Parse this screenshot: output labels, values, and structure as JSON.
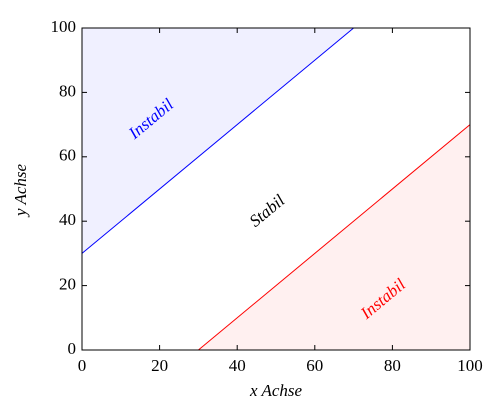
{
  "chart_data": {
    "type": "line",
    "xlabel": "x Achse",
    "ylabel": "y Achse",
    "series": [
      {
        "color": "#0000ff",
        "fill": "above",
        "x": [
          0,
          70
        ],
        "values": [
          30,
          100
        ]
      },
      {
        "color": "#ff0000",
        "fill": "below",
        "x": [
          30,
          100
        ],
        "values": [
          0,
          70
        ]
      }
    ],
    "annotations": [
      {
        "text": "Instabil",
        "color": "#0000ff"
      },
      {
        "text": "Stabil",
        "color": "#000000"
      },
      {
        "text": "Instabil",
        "color": "#ff0000"
      }
    ],
    "xlim": [
      0,
      100
    ],
    "ylim": [
      0,
      100
    ],
    "xticks": [
      0,
      20,
      40,
      60,
      80,
      100
    ],
    "yticks": [
      0,
      20,
      40,
      60,
      80,
      100
    ]
  }
}
